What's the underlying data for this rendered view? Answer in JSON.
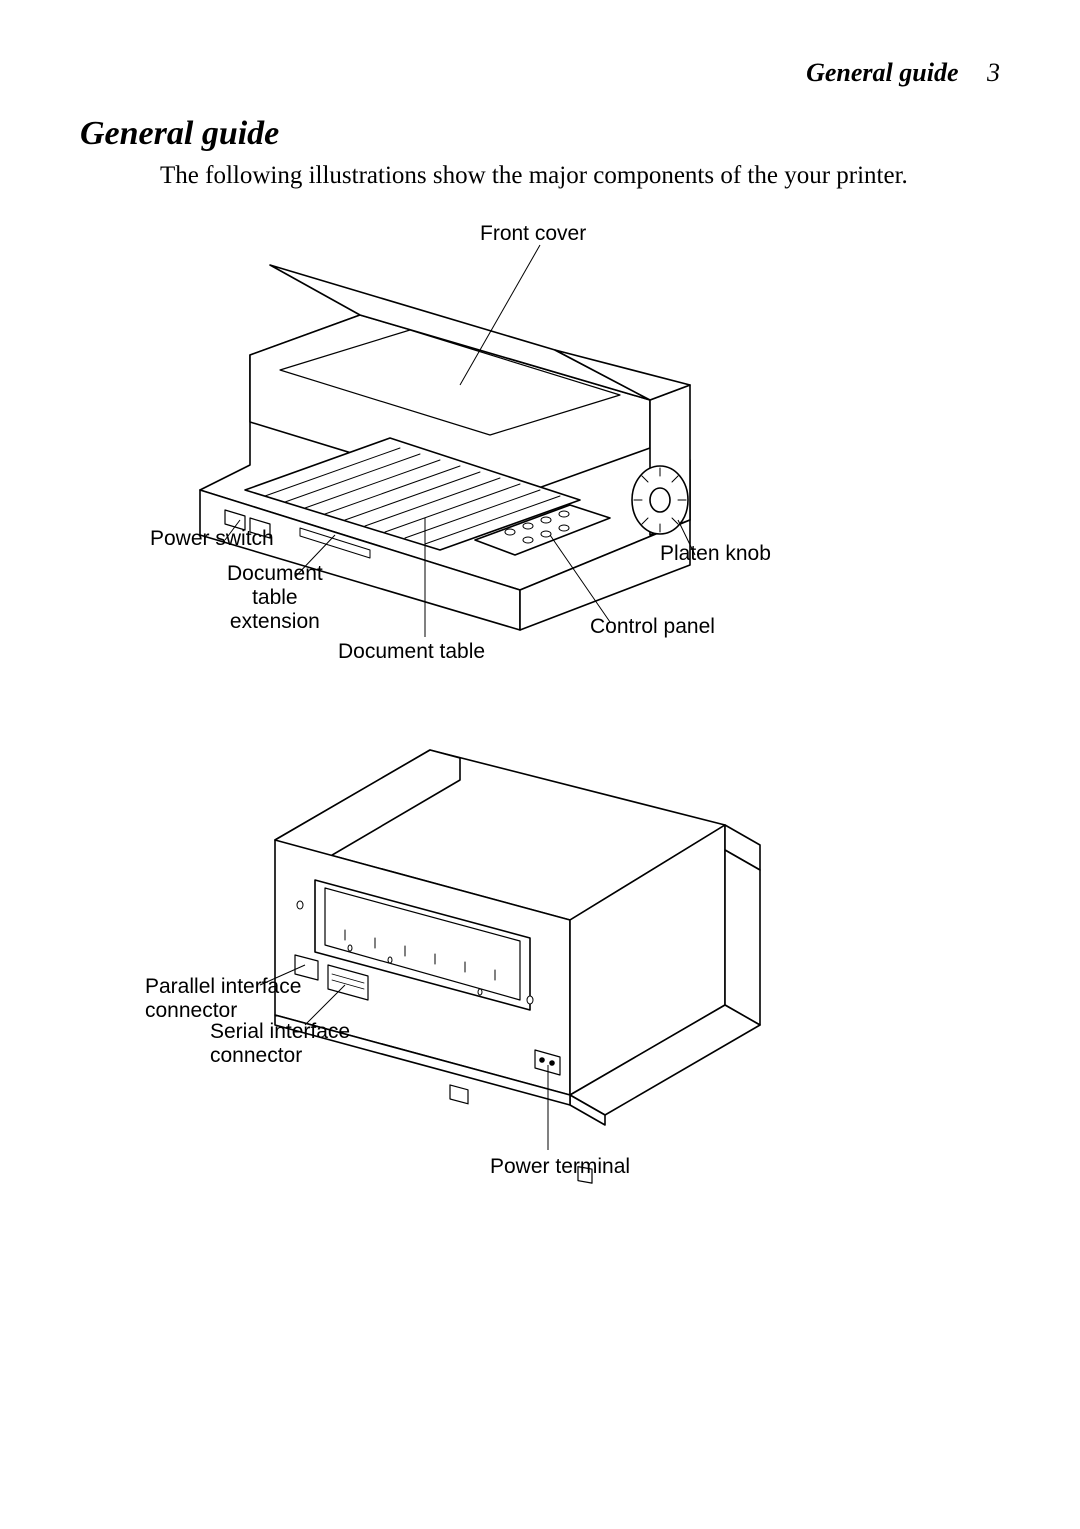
{
  "header": {
    "title": "General guide",
    "page": "3"
  },
  "title": "General guide",
  "intro": "The following illustrations show the major components of the your printer.",
  "fig1": {
    "labels": {
      "front_cover": "Front cover",
      "power_switch": "Power switch",
      "doc_table_ext": "Document\ntable\nextension",
      "doc_table": "Document table",
      "control_panel": "Control panel",
      "platen_knob": "Platen knob"
    }
  },
  "fig2": {
    "labels": {
      "parallel": "Parallel interface\nconnector",
      "serial": "Serial interface\nconnector",
      "power_terminal": "Power terminal"
    }
  },
  "style": {
    "stroke": "#000000",
    "stroke_width": 1.3,
    "bg": "#ffffff"
  }
}
